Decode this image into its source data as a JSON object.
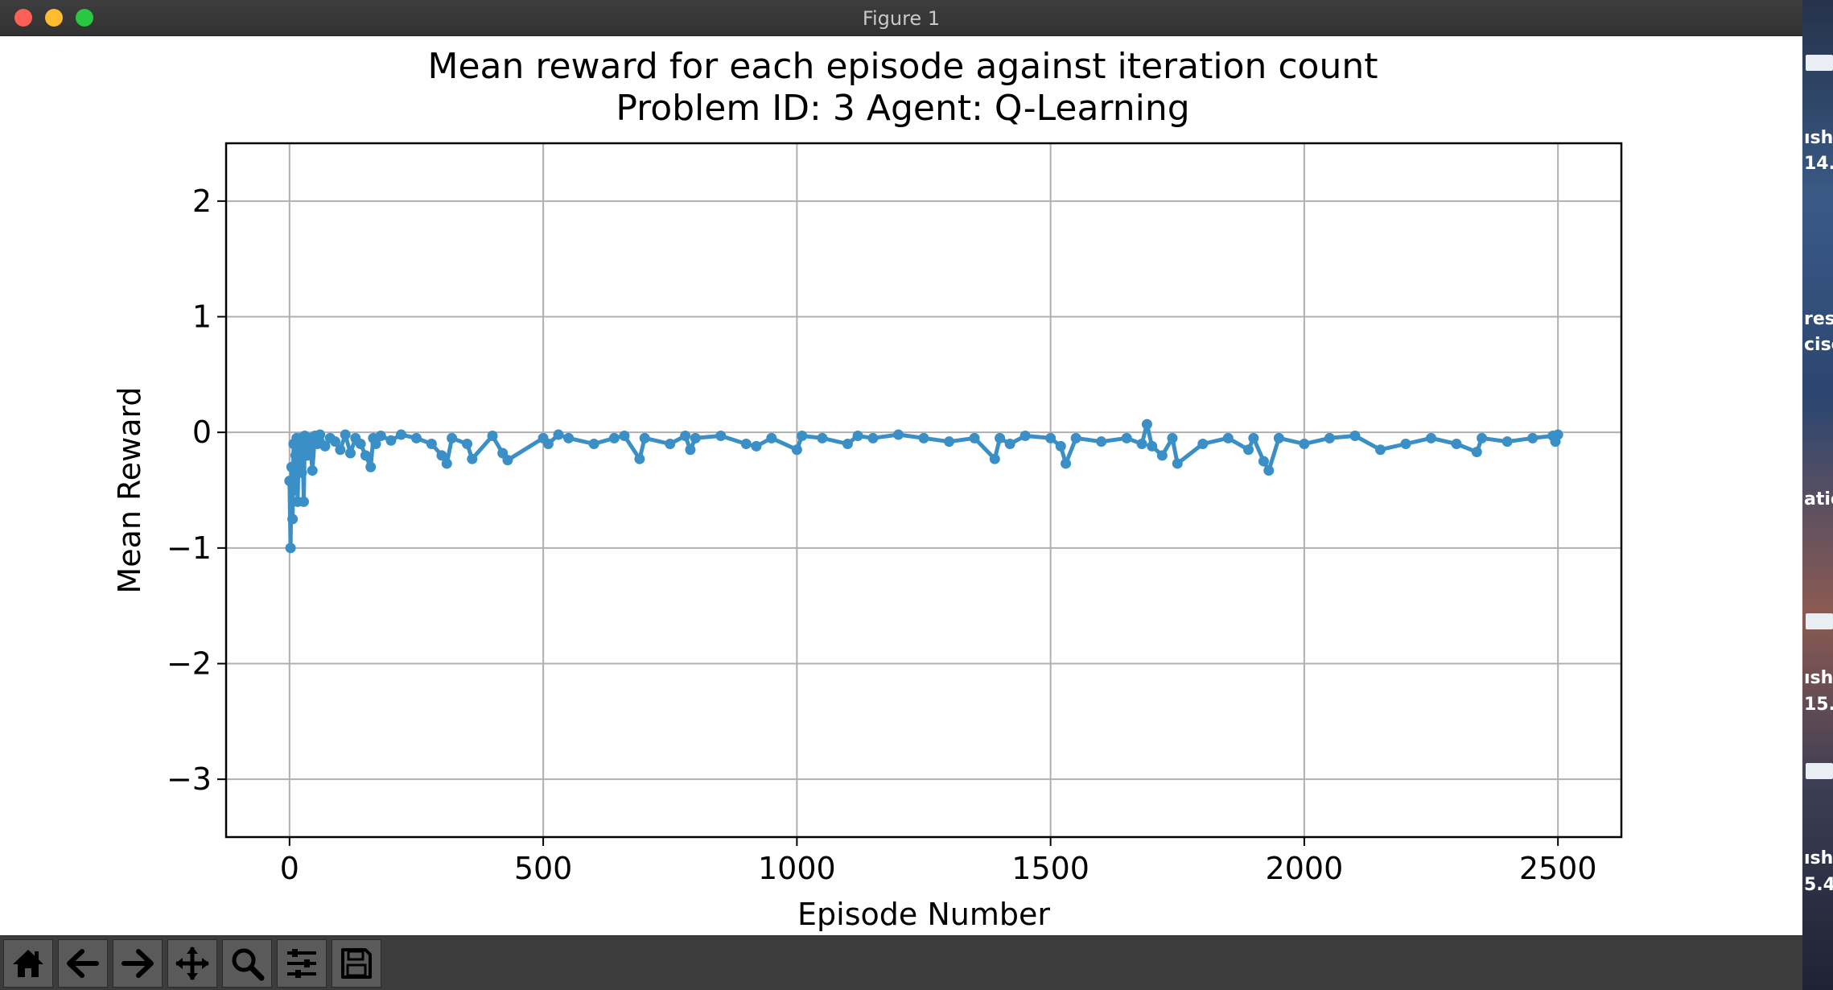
{
  "window": {
    "title": "Figure 1",
    "traffic_lights": {
      "close": "#fe5f57",
      "minimize": "#febc2e",
      "maximize": "#28c840"
    }
  },
  "toolbar": {
    "buttons": [
      {
        "name": "home-button",
        "icon": "home-icon"
      },
      {
        "name": "back-button",
        "icon": "arrow-left-icon"
      },
      {
        "name": "forward-button",
        "icon": "arrow-right-icon"
      },
      {
        "name": "pan-button",
        "icon": "move-icon"
      },
      {
        "name": "zoom-button",
        "icon": "search-icon"
      },
      {
        "name": "configure-subplots-button",
        "icon": "sliders-icon"
      },
      {
        "name": "save-button",
        "icon": "floppy-disk-icon"
      }
    ]
  },
  "desktop_strip": {
    "fragments": [
      "ısho",
      "14.",
      "ress",
      "cise",
      "atio",
      "ısho",
      "15.",
      "ısho",
      "5.4"
    ]
  },
  "chart_data": {
    "type": "line",
    "title": "Mean reward for each episode against iteration count",
    "subtitle": "Problem ID: 3 Agent: Q-Learning",
    "xlabel": "Episode Number",
    "ylabel": "Mean Reward",
    "xlim": [
      -125,
      2625
    ],
    "ylim": [
      -3.5,
      2.5
    ],
    "xticks": [
      0,
      500,
      1000,
      1500,
      2000,
      2500
    ],
    "yticks": [
      2,
      1,
      0,
      -1,
      -2,
      -3
    ],
    "xtick_labels": [
      "0",
      "500",
      "1000",
      "1500",
      "2000",
      "2500"
    ],
    "ytick_labels": [
      "2",
      "1",
      "0",
      "−1",
      "−2",
      "−3"
    ],
    "grid": true,
    "marker": "circle",
    "color": "#3a8fc6",
    "series": [
      {
        "x": [
          0,
          2,
          4,
          6,
          8,
          10,
          12,
          14,
          16,
          18,
          20,
          22,
          24,
          26,
          28,
          30,
          35,
          40,
          45,
          50,
          55,
          60,
          70,
          80,
          90,
          100,
          110,
          120,
          130,
          140,
          150,
          160,
          165,
          170,
          180,
          200,
          220,
          250,
          280,
          300,
          310,
          320,
          350,
          360,
          400,
          420,
          430,
          500,
          510,
          530,
          550,
          600,
          640,
          660,
          690,
          700,
          750,
          780,
          790,
          800,
          850,
          900,
          920,
          950,
          1000,
          1010,
          1050,
          1100,
          1120,
          1150,
          1200,
          1250,
          1300,
          1350,
          1390,
          1400,
          1420,
          1450,
          1500,
          1520,
          1530,
          1550,
          1600,
          1650,
          1680,
          1690,
          1700,
          1720,
          1740,
          1750,
          1800,
          1850,
          1890,
          1900,
          1920,
          1930,
          1950,
          2000,
          2050,
          2100,
          2150,
          2200,
          2250,
          2300,
          2340,
          2350,
          2400,
          2450,
          2490,
          2495,
          2500
        ],
        "y": [
          -0.42,
          -1.0,
          -0.3,
          -0.75,
          -0.1,
          -0.5,
          -0.2,
          -0.05,
          -0.6,
          -0.15,
          -0.25,
          -0.05,
          -0.35,
          -0.12,
          -0.6,
          -0.03,
          -0.2,
          -0.05,
          -0.33,
          -0.03,
          -0.1,
          -0.02,
          -0.12,
          -0.05,
          -0.08,
          -0.15,
          -0.02,
          -0.18,
          -0.05,
          -0.1,
          -0.2,
          -0.3,
          -0.05,
          -0.1,
          -0.03,
          -0.07,
          -0.02,
          -0.05,
          -0.1,
          -0.2,
          -0.27,
          -0.05,
          -0.1,
          -0.23,
          -0.03,
          -0.18,
          -0.24,
          -0.05,
          -0.1,
          -0.02,
          -0.05,
          -0.1,
          -0.05,
          -0.03,
          -0.23,
          -0.05,
          -0.1,
          -0.03,
          -0.15,
          -0.05,
          -0.03,
          -0.1,
          -0.12,
          -0.05,
          -0.15,
          -0.03,
          -0.05,
          -0.1,
          -0.03,
          -0.05,
          -0.02,
          -0.05,
          -0.08,
          -0.05,
          -0.23,
          -0.05,
          -0.1,
          -0.03,
          -0.05,
          -0.12,
          -0.27,
          -0.05,
          -0.08,
          -0.05,
          -0.1,
          0.07,
          -0.12,
          -0.2,
          -0.05,
          -0.27,
          -0.1,
          -0.05,
          -0.15,
          -0.05,
          -0.25,
          -0.33,
          -0.05,
          -0.1,
          -0.05,
          -0.03,
          -0.15,
          -0.1,
          -0.05,
          -0.1,
          -0.17,
          -0.05,
          -0.08,
          -0.05,
          -0.03,
          -0.08,
          -0.02
        ]
      }
    ]
  }
}
